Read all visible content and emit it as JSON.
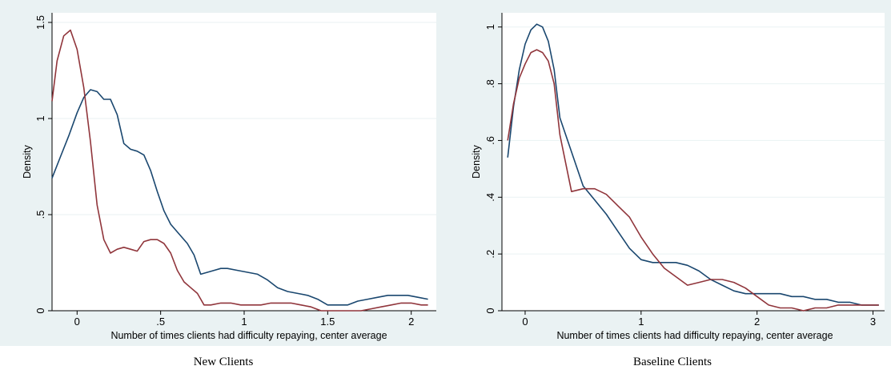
{
  "chart_data": [
    {
      "type": "line",
      "caption": "New Clients",
      "xlabel": "Number of times clients had difficulty repaying, center average",
      "ylabel": "Density",
      "xlim": [
        -0.15,
        2.15
      ],
      "ylim": [
        0,
        1.55
      ],
      "xticks": [
        {
          "v": 0,
          "label": "0"
        },
        {
          "v": 0.5,
          "label": ".5"
        },
        {
          "v": 1,
          "label": "1"
        },
        {
          "v": 1.5,
          "label": "1.5"
        },
        {
          "v": 2,
          "label": "2"
        }
      ],
      "yticks": [
        {
          "v": 0,
          "label": "0"
        },
        {
          "v": 0.5,
          "label": ".5"
        },
        {
          "v": 1,
          "label": "1"
        },
        {
          "v": 1.5,
          "label": "1.5"
        }
      ],
      "grid": true,
      "series": [
        {
          "color": "#1a476f",
          "points": [
            [
              -0.15,
              0.69
            ],
            [
              -0.1,
              0.8
            ],
            [
              -0.05,
              0.91
            ],
            [
              0,
              1.03
            ],
            [
              0.04,
              1.11
            ],
            [
              0.08,
              1.15
            ],
            [
              0.12,
              1.14
            ],
            [
              0.16,
              1.1
            ],
            [
              0.2,
              1.1
            ],
            [
              0.24,
              1.02
            ],
            [
              0.28,
              0.87
            ],
            [
              0.32,
              0.84
            ],
            [
              0.36,
              0.83
            ],
            [
              0.4,
              0.81
            ],
            [
              0.44,
              0.73
            ],
            [
              0.48,
              0.62
            ],
            [
              0.52,
              0.52
            ],
            [
              0.56,
              0.45
            ],
            [
              0.6,
              0.41
            ],
            [
              0.66,
              0.35
            ],
            [
              0.7,
              0.29
            ],
            [
              0.74,
              0.19
            ],
            [
              0.78,
              0.2
            ],
            [
              0.82,
              0.21
            ],
            [
              0.86,
              0.22
            ],
            [
              0.9,
              0.22
            ],
            [
              0.96,
              0.21
            ],
            [
              1.02,
              0.2
            ],
            [
              1.08,
              0.19
            ],
            [
              1.14,
              0.16
            ],
            [
              1.2,
              0.12
            ],
            [
              1.26,
              0.1
            ],
            [
              1.32,
              0.09
            ],
            [
              1.38,
              0.08
            ],
            [
              1.44,
              0.06
            ],
            [
              1.5,
              0.03
            ],
            [
              1.56,
              0.03
            ],
            [
              1.62,
              0.03
            ],
            [
              1.68,
              0.05
            ],
            [
              1.74,
              0.06
            ],
            [
              1.8,
              0.07
            ],
            [
              1.86,
              0.08
            ],
            [
              1.92,
              0.08
            ],
            [
              1.98,
              0.08
            ],
            [
              2.04,
              0.07
            ],
            [
              2.1,
              0.06
            ]
          ]
        },
        {
          "color": "#90353b",
          "points": [
            [
              -0.15,
              1.09
            ],
            [
              -0.12,
              1.3
            ],
            [
              -0.08,
              1.43
            ],
            [
              -0.04,
              1.46
            ],
            [
              0,
              1.36
            ],
            [
              0.04,
              1.16
            ],
            [
              0.08,
              0.88
            ],
            [
              0.12,
              0.55
            ],
            [
              0.16,
              0.37
            ],
            [
              0.2,
              0.3
            ],
            [
              0.24,
              0.32
            ],
            [
              0.28,
              0.33
            ],
            [
              0.32,
              0.32
            ],
            [
              0.36,
              0.31
            ],
            [
              0.4,
              0.36
            ],
            [
              0.44,
              0.37
            ],
            [
              0.48,
              0.37
            ],
            [
              0.52,
              0.35
            ],
            [
              0.56,
              0.3
            ],
            [
              0.6,
              0.21
            ],
            [
              0.64,
              0.15
            ],
            [
              0.68,
              0.12
            ],
            [
              0.72,
              0.09
            ],
            [
              0.76,
              0.03
            ],
            [
              0.8,
              0.03
            ],
            [
              0.86,
              0.04
            ],
            [
              0.92,
              0.04
            ],
            [
              0.98,
              0.03
            ],
            [
              1.04,
              0.03
            ],
            [
              1.1,
              0.03
            ],
            [
              1.16,
              0.04
            ],
            [
              1.22,
              0.04
            ],
            [
              1.28,
              0.04
            ],
            [
              1.34,
              0.03
            ],
            [
              1.4,
              0.02
            ],
            [
              1.46,
              0
            ],
            [
              1.52,
              0
            ],
            [
              1.58,
              0
            ],
            [
              1.64,
              0
            ],
            [
              1.7,
              0
            ],
            [
              1.76,
              0.01
            ],
            [
              1.82,
              0.02
            ],
            [
              1.88,
              0.03
            ],
            [
              1.94,
              0.04
            ],
            [
              2.0,
              0.04
            ],
            [
              2.06,
              0.03
            ],
            [
              2.1,
              0.03
            ]
          ]
        }
      ]
    },
    {
      "type": "line",
      "caption": "Baseline Clients",
      "xlabel": "Number of times clients had difficulty repaying, center average",
      "ylabel": "Density",
      "xlim": [
        -0.2,
        3.1
      ],
      "ylim": [
        0,
        1.05
      ],
      "xticks": [
        {
          "v": 0,
          "label": "0"
        },
        {
          "v": 1,
          "label": "1"
        },
        {
          "v": 2,
          "label": "2"
        },
        {
          "v": 3,
          "label": "3"
        }
      ],
      "yticks": [
        {
          "v": 0,
          "label": "0"
        },
        {
          "v": 0.2,
          "label": ".2"
        },
        {
          "v": 0.4,
          "label": ".4"
        },
        {
          "v": 0.6,
          "label": ".6"
        },
        {
          "v": 0.8,
          "label": ".8"
        },
        {
          "v": 1,
          "label": "1"
        }
      ],
      "grid": true,
      "series": [
        {
          "color": "#1a476f",
          "points": [
            [
              -0.15,
              0.54
            ],
            [
              -0.1,
              0.72
            ],
            [
              -0.05,
              0.85
            ],
            [
              0,
              0.94
            ],
            [
              0.05,
              0.99
            ],
            [
              0.1,
              1.01
            ],
            [
              0.15,
              1.0
            ],
            [
              0.2,
              0.95
            ],
            [
              0.25,
              0.85
            ],
            [
              0.3,
              0.68
            ],
            [
              0.4,
              0.56
            ],
            [
              0.5,
              0.44
            ],
            [
              0.6,
              0.39
            ],
            [
              0.7,
              0.34
            ],
            [
              0.8,
              0.28
            ],
            [
              0.9,
              0.22
            ],
            [
              1.0,
              0.18
            ],
            [
              1.1,
              0.17
            ],
            [
              1.2,
              0.17
            ],
            [
              1.3,
              0.17
            ],
            [
              1.4,
              0.16
            ],
            [
              1.5,
              0.14
            ],
            [
              1.6,
              0.11
            ],
            [
              1.7,
              0.09
            ],
            [
              1.8,
              0.07
            ],
            [
              1.9,
              0.06
            ],
            [
              2.0,
              0.06
            ],
            [
              2.1,
              0.06
            ],
            [
              2.2,
              0.06
            ],
            [
              2.3,
              0.05
            ],
            [
              2.4,
              0.05
            ],
            [
              2.5,
              0.04
            ],
            [
              2.6,
              0.04
            ],
            [
              2.7,
              0.03
            ],
            [
              2.8,
              0.03
            ],
            [
              2.9,
              0.02
            ],
            [
              3.0,
              0.02
            ],
            [
              3.05,
              0.02
            ]
          ]
        },
        {
          "color": "#90353b",
          "points": [
            [
              -0.15,
              0.6
            ],
            [
              -0.1,
              0.73
            ],
            [
              -0.05,
              0.82
            ],
            [
              0,
              0.87
            ],
            [
              0.05,
              0.91
            ],
            [
              0.1,
              0.92
            ],
            [
              0.15,
              0.91
            ],
            [
              0.2,
              0.88
            ],
            [
              0.25,
              0.8
            ],
            [
              0.3,
              0.62
            ],
            [
              0.4,
              0.42
            ],
            [
              0.5,
              0.43
            ],
            [
              0.6,
              0.43
            ],
            [
              0.7,
              0.41
            ],
            [
              0.8,
              0.37
            ],
            [
              0.9,
              0.33
            ],
            [
              1.0,
              0.26
            ],
            [
              1.1,
              0.2
            ],
            [
              1.2,
              0.15
            ],
            [
              1.3,
              0.12
            ],
            [
              1.4,
              0.09
            ],
            [
              1.5,
              0.1
            ],
            [
              1.6,
              0.11
            ],
            [
              1.7,
              0.11
            ],
            [
              1.8,
              0.1
            ],
            [
              1.9,
              0.08
            ],
            [
              2.0,
              0.05
            ],
            [
              2.1,
              0.02
            ],
            [
              2.2,
              0.01
            ],
            [
              2.3,
              0.01
            ],
            [
              2.4,
              0.0
            ],
            [
              2.5,
              0.01
            ],
            [
              2.6,
              0.01
            ],
            [
              2.7,
              0.02
            ],
            [
              2.8,
              0.02
            ],
            [
              2.9,
              0.02
            ],
            [
              3.0,
              0.02
            ],
            [
              3.05,
              0.02
            ]
          ]
        }
      ]
    }
  ]
}
